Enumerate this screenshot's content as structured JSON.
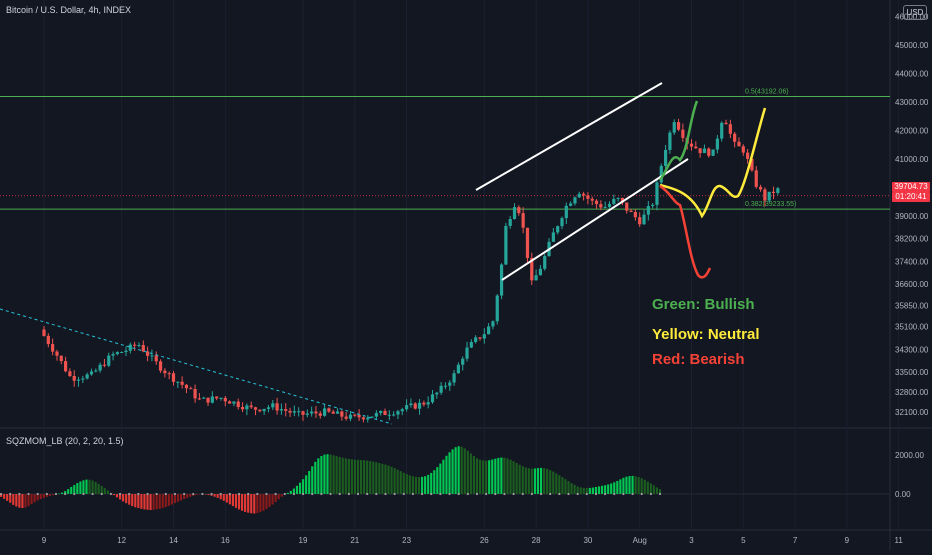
{
  "header": {
    "title": "Bitcoin / U.S. Dollar, 4h, INDEX",
    "currency_badge": "USD",
    "last_price": "39704.73",
    "countdown": "01:20:41"
  },
  "oscillator": {
    "title": "SQZMOM_LB (20, 2, 20, 1.5)"
  },
  "legend": [
    {
      "label": "Green: Bullish",
      "color": "#4caf50"
    },
    {
      "label": "Yellow: Neutral",
      "color": "#ffeb3b"
    },
    {
      "label": "Red: Bearish",
      "color": "#f44336"
    }
  ],
  "colors": {
    "background": "#131722",
    "up_candle": "#26a69a",
    "down_candle": "#ef5350",
    "fib_line": "#4caf50",
    "channel": "#ffffff",
    "trendline": "#2196f3",
    "momentum_up_strong": "#00c853",
    "momentum_up_weak": "#1b5e20",
    "momentum_down_strong": "#e53935",
    "momentum_down_weak": "#8b1a1a"
  },
  "chart_data": {
    "type": "candlestick",
    "price_axis": {
      "range": [
        31700,
        47300
      ],
      "ticks": [
        "47000.00",
        "46000.00",
        "45000.00",
        "44000.00",
        "43000.00",
        "42000.00",
        "41000.00",
        "40000.00",
        "39000.00",
        "38200.00",
        "37400.00",
        "36600.00",
        "35850.00",
        "35100.00",
        "34300.00",
        "33500.00",
        "32800.00",
        "32100.00"
      ]
    },
    "time_axis": {
      "ticks": [
        "9",
        "12",
        "14",
        "16",
        "19",
        "21",
        "23",
        "26",
        "28",
        "30",
        "Aug",
        "3",
        "5",
        "7",
        "9",
        "11"
      ]
    },
    "fib_levels": [
      {
        "label": "0.5(43192.06)",
        "value": 43192.06
      },
      {
        "label": "0.382(39233.55)",
        "value": 39233.55
      }
    ],
    "current_price": 39704.73,
    "channel": {
      "upper": [
        [
          "Jul 26",
          39620
        ],
        [
          "Aug 3",
          44230
        ]
      ],
      "lower": [
        [
          "Jul 27",
          36360
        ],
        [
          "Aug 2",
          40840
        ]
      ]
    },
    "descending_trendline": [
      [
        "Jul 7",
        35230
      ],
      [
        "Jul 22",
        31920
      ]
    ],
    "scenarios": [
      {
        "name": "Green: Bullish",
        "path": [
          39700,
          40600,
          41600,
          43200
        ]
      },
      {
        "name": "Yellow: Neutral",
        "path": [
          39700,
          39000,
          39450,
          39600,
          42800
        ]
      },
      {
        "name": "Red: Bearish",
        "path": [
          39700,
          38500,
          36700,
          36500
        ]
      }
    ],
    "oscillator_axis": {
      "ticks": [
        "2000.00",
        "0.00"
      ]
    },
    "oscillator_series": [
      -150,
      -250,
      -350,
      -450,
      -560,
      -640,
      -700,
      -720,
      -690,
      -620,
      -520,
      -420,
      -330,
      -260,
      -200,
      -150,
      -100,
      -60,
      -30,
      20,
      70,
      150,
      250,
      360,
      460,
      560,
      640,
      700,
      740,
      730,
      690,
      620,
      520,
      410,
      300,
      180,
      60,
      -60,
      -170,
      -280,
      -380,
      -470,
      -550,
      -620,
      -680,
      -720,
      -760,
      -790,
      -810,
      -820,
      -810,
      -790,
      -760,
      -720,
      -670,
      -610,
      -540,
      -470,
      -400,
      -330,
      -260,
      -200,
      -140,
      -90,
      -50,
      -20,
      10,
      -20,
      -50,
      -90,
      -140,
      -200,
      -270,
      -350,
      -440,
      -530,
      -620,
      -710,
      -790,
      -860,
      -920,
      -960,
      -990,
      -1000,
      -980,
      -930,
      -860,
      -770,
      -660,
      -540,
      -410,
      -270,
      -140,
      -30,
      60,
      160,
      280,
      420,
      580,
      760,
      960,
      1180,
      1420,
      1650,
      1830,
      1950,
      2020,
      2040,
      2020,
      1980,
      1940,
      1900,
      1860,
      1830,
      1800,
      1780,
      1760,
      1750,
      1740,
      1730,
      1710,
      1690,
      1660,
      1630,
      1590,
      1550,
      1510,
      1460,
      1400,
      1330,
      1250,
      1170,
      1090,
      1020,
      960,
      910,
      880,
      870,
      880,
      910,
      980,
      1080,
      1220,
      1380,
      1560,
      1760,
      1960,
      2140,
      2290,
      2400,
      2450,
      2420,
      2340,
      2220,
      2080,
      1950,
      1830,
      1760,
      1720,
      1710,
      1730,
      1770,
      1810,
      1850,
      1870,
      1860,
      1820,
      1760,
      1680,
      1590,
      1500,
      1420,
      1360,
      1320,
      1300,
      1310,
      1330,
      1340,
      1330,
      1290,
      1230,
      1150,
      1060,
      960,
      860,
      760,
      660,
      560,
      470,
      390,
      340,
      310,
      300,
      310,
      330,
      360,
      390,
      420,
      450,
      490,
      540,
      600,
      670,
      750,
      830,
      890,
      920,
      930,
      910,
      870,
      810,
      730,
      640,
      540,
      440,
      340,
      250
    ]
  }
}
